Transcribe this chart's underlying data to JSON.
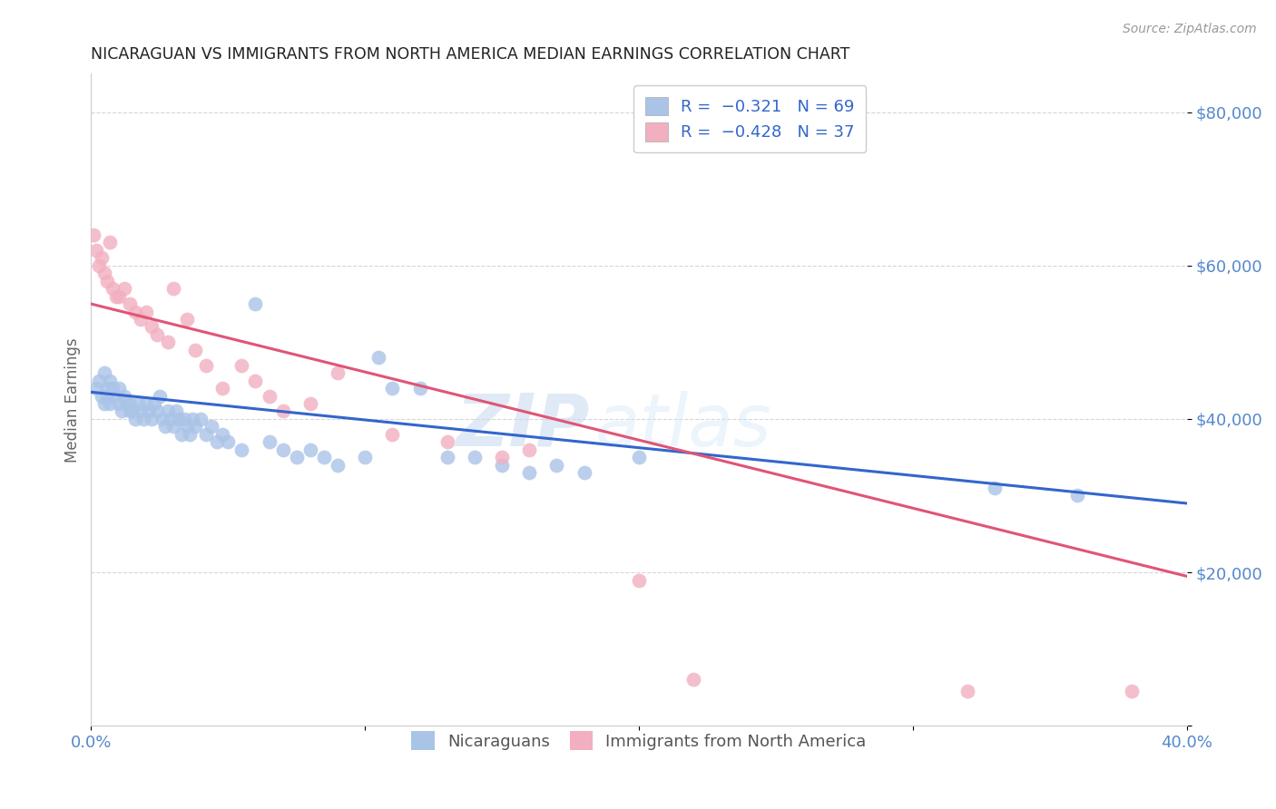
{
  "title": "NICARAGUAN VS IMMIGRANTS FROM NORTH AMERICA MEDIAN EARNINGS CORRELATION CHART",
  "source": "Source: ZipAtlas.com",
  "ylabel": "Median Earnings",
  "watermark_zip": "ZIP",
  "watermark_atlas": "atlas",
  "blue_color": "#aac4e8",
  "pink_color": "#f2afc0",
  "line_blue": "#3366cc",
  "line_pink": "#e05575",
  "title_color": "#222222",
  "axis_color": "#5588cc",
  "legend_text_color": "#3366cc",
  "source_color": "#999999",
  "ylabel_color": "#666666",
  "xlim": [
    0.0,
    0.4
  ],
  "ylim": [
    0,
    85000
  ],
  "yticks": [
    0,
    20000,
    40000,
    60000,
    80000
  ],
  "ytick_labels": [
    "",
    "$20,000",
    "$40,000",
    "$60,000",
    "$80,000"
  ],
  "blue_line_x": [
    0.0,
    0.4
  ],
  "blue_line_y": [
    43500,
    29000
  ],
  "pink_line_x": [
    0.0,
    0.4
  ],
  "pink_line_y": [
    55000,
    19500
  ],
  "blue_x": [
    0.002,
    0.003,
    0.004,
    0.005,
    0.005,
    0.006,
    0.006,
    0.007,
    0.007,
    0.008,
    0.009,
    0.01,
    0.01,
    0.011,
    0.012,
    0.013,
    0.014,
    0.014,
    0.015,
    0.016,
    0.017,
    0.018,
    0.019,
    0.02,
    0.021,
    0.022,
    0.023,
    0.024,
    0.025,
    0.026,
    0.027,
    0.028,
    0.029,
    0.03,
    0.031,
    0.032,
    0.033,
    0.034,
    0.035,
    0.036,
    0.037,
    0.038,
    0.04,
    0.042,
    0.044,
    0.046,
    0.048,
    0.05,
    0.055,
    0.06,
    0.065,
    0.07,
    0.075,
    0.08,
    0.085,
    0.09,
    0.1,
    0.105,
    0.11,
    0.12,
    0.13,
    0.14,
    0.15,
    0.16,
    0.17,
    0.18,
    0.2,
    0.33,
    0.36
  ],
  "blue_y": [
    44000,
    45000,
    43000,
    46000,
    42000,
    44000,
    43000,
    45000,
    42000,
    44000,
    43000,
    42000,
    44000,
    41000,
    43000,
    42000,
    41000,
    42000,
    41000,
    40000,
    42000,
    41000,
    40000,
    42000,
    41000,
    40000,
    42000,
    41000,
    43000,
    40000,
    39000,
    41000,
    40000,
    39000,
    41000,
    40000,
    38000,
    40000,
    39000,
    38000,
    40000,
    39000,
    40000,
    38000,
    39000,
    37000,
    38000,
    37000,
    36000,
    55000,
    37000,
    36000,
    35000,
    36000,
    35000,
    34000,
    35000,
    48000,
    44000,
    44000,
    35000,
    35000,
    34000,
    33000,
    34000,
    33000,
    35000,
    31000,
    30000
  ],
  "pink_x": [
    0.001,
    0.002,
    0.003,
    0.004,
    0.005,
    0.006,
    0.007,
    0.008,
    0.009,
    0.01,
    0.012,
    0.014,
    0.016,
    0.018,
    0.02,
    0.022,
    0.024,
    0.028,
    0.03,
    0.035,
    0.038,
    0.042,
    0.048,
    0.055,
    0.06,
    0.065,
    0.07,
    0.08,
    0.09,
    0.11,
    0.13,
    0.15,
    0.16,
    0.2,
    0.22,
    0.32,
    0.38
  ],
  "pink_y": [
    64000,
    62000,
    60000,
    61000,
    59000,
    58000,
    63000,
    57000,
    56000,
    56000,
    57000,
    55000,
    54000,
    53000,
    54000,
    52000,
    51000,
    50000,
    57000,
    53000,
    49000,
    47000,
    44000,
    47000,
    45000,
    43000,
    41000,
    42000,
    46000,
    38000,
    37000,
    35000,
    36000,
    19000,
    6000,
    4500,
    4500
  ]
}
